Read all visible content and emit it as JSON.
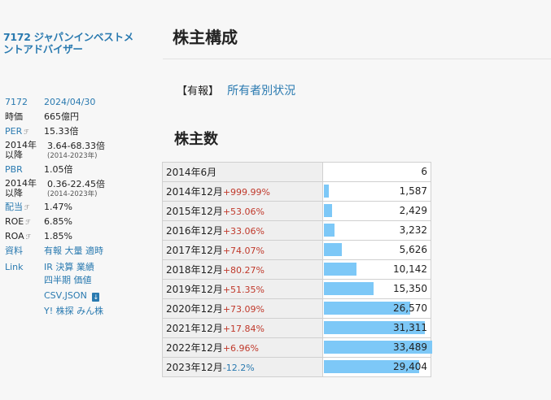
{
  "sidebar": {
    "company_name": "7172 ジャパンインベストメントアドバイザー",
    "code": "7172",
    "date": "2024/04/30",
    "jika_label": "時価",
    "jika_value": "665億円",
    "per_label": "PER",
    "per_value": "15.33倍",
    "per_hist_label": "2014年以降",
    "per_hist_range": "3.64-68.33倍",
    "per_hist_years": "(2014-2023年)",
    "pbr_label": "PBR",
    "pbr_value": "1.05倍",
    "pbr_hist_label": "2014年以降",
    "pbr_hist_range": "0.36-22.45倍",
    "pbr_hist_years": "(2014-2023年)",
    "haitou_label": "配当",
    "haitou_value": "1.47%",
    "roe_label": "ROE",
    "roe_value": "6.85%",
    "roa_label": "ROA",
    "roa_value": "1.85%",
    "shiryo_label": "資料",
    "shiryo_links": [
      "有報",
      "大量",
      "適時"
    ],
    "link_label": "Link",
    "link_row1": [
      "IR",
      "決算",
      "業績"
    ],
    "link_row2": [
      "四半期",
      "価値"
    ],
    "csv_json": "CSV,JSON",
    "link_row4": [
      "Y!",
      "株探",
      "みん株"
    ]
  },
  "main": {
    "title": "株主構成",
    "report_tag": "【有報】",
    "report_link": "所有者別状況",
    "section_title": "株主数"
  },
  "chart_data": {
    "type": "table",
    "title": "株主数",
    "max": 33489,
    "rows": [
      {
        "label": "2014年6月",
        "change": "",
        "dir": "",
        "value": 6,
        "display": "6"
      },
      {
        "label": "2014年12月",
        "change": "+999.99%",
        "dir": "up",
        "value": 1587,
        "display": "1,587"
      },
      {
        "label": "2015年12月",
        "change": "+53.06%",
        "dir": "up",
        "value": 2429,
        "display": "2,429"
      },
      {
        "label": "2016年12月",
        "change": "+33.06%",
        "dir": "up",
        "value": 3232,
        "display": "3,232"
      },
      {
        "label": "2017年12月",
        "change": "+74.07%",
        "dir": "up",
        "value": 5626,
        "display": "5,626"
      },
      {
        "label": "2018年12月",
        "change": "+80.27%",
        "dir": "up",
        "value": 10142,
        "display": "10,142"
      },
      {
        "label": "2019年12月",
        "change": "+51.35%",
        "dir": "up",
        "value": 15350,
        "display": "15,350"
      },
      {
        "label": "2020年12月",
        "change": "+73.09%",
        "dir": "up",
        "value": 26570,
        "display": "26,570"
      },
      {
        "label": "2021年12月",
        "change": "+17.84%",
        "dir": "up",
        "value": 31311,
        "display": "31,311"
      },
      {
        "label": "2022年12月",
        "change": "+6.96%",
        "dir": "up",
        "value": 33489,
        "display": "33,489"
      },
      {
        "label": "2023年12月",
        "change": "-12.2%",
        "dir": "down",
        "value": 29404,
        "display": "29,404"
      }
    ]
  }
}
